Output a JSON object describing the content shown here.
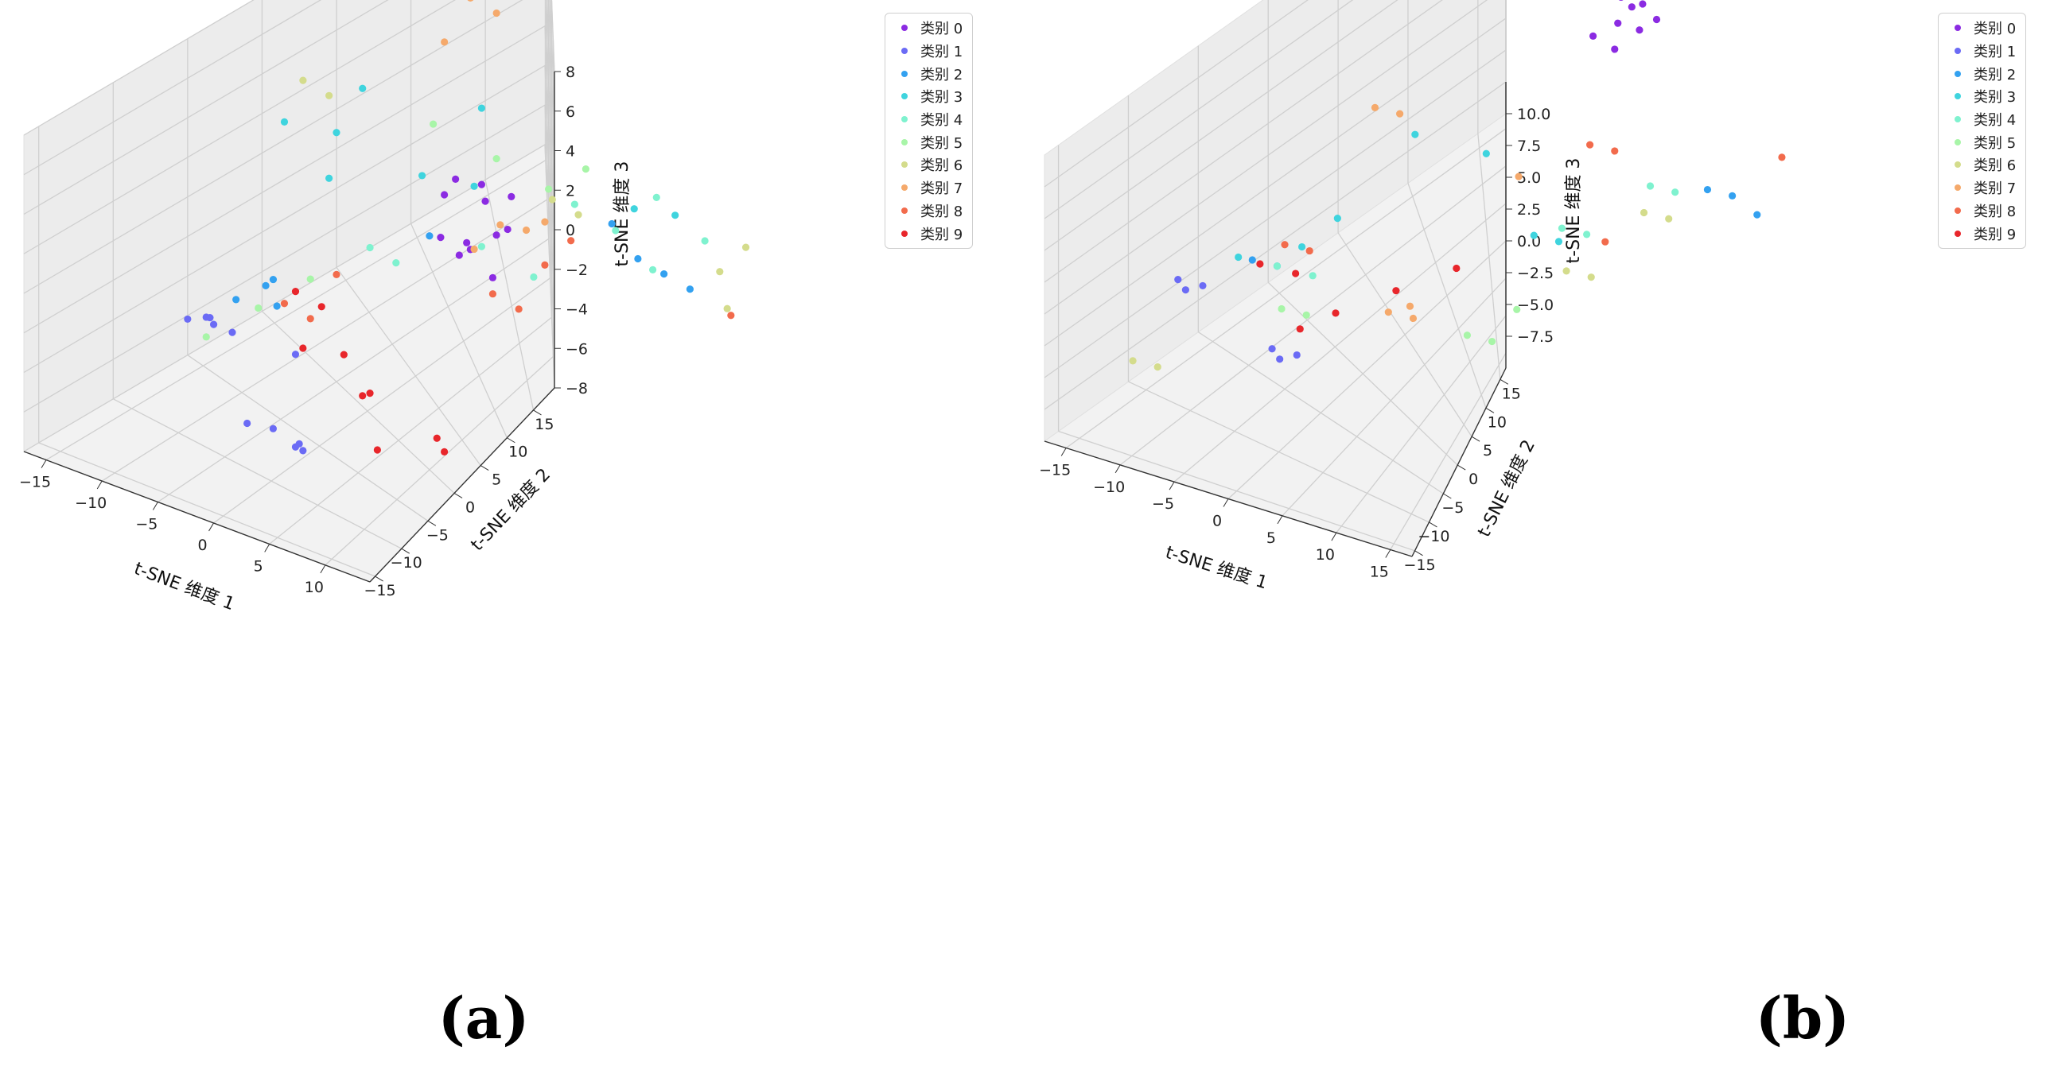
{
  "captions": [
    "(a)",
    "(b)"
  ],
  "chart_data": [
    {
      "type": "scatter",
      "subtype": "3d-scatter",
      "xlabel": "t-SNE 维度 1",
      "ylabel": "t-SNE 维度 2",
      "zlabel": "t-SNE 维度 3",
      "xticks": [
        "−15",
        "−10",
        "−5",
        "0",
        "5",
        "10"
      ],
      "yticks": [
        "−15",
        "−10",
        "−5",
        "0",
        "5",
        "10",
        "15"
      ],
      "zticks": [
        "8",
        "6",
        "4",
        "2",
        "0",
        "−2",
        "−4",
        "−6",
        "−8"
      ],
      "xlim": [
        -17,
        14
      ],
      "ylim": [
        -16,
        19
      ],
      "zlim": [
        -8,
        8
      ],
      "legend": [
        "类别 0",
        "类别 1",
        "类别 2",
        "类别 3",
        "类别 4",
        "类别 5",
        "类别 6",
        "类别 7",
        "类别 8",
        "类别 9"
      ],
      "series": [
        {
          "name": "类别 0",
          "color": "#8b2be2",
          "points": [
            [
              7,
              -5,
              6
            ],
            [
              8,
              -4,
              5.5
            ],
            [
              7,
              -3,
              4
            ],
            [
              8,
              -5,
              3
            ],
            [
              7,
              -4,
              2
            ],
            [
              8,
              -3,
              2.5
            ],
            [
              6,
              -4,
              1.5
            ],
            [
              9,
              -4,
              1
            ],
            [
              7,
              -6,
              3.5
            ],
            [
              8,
              -2,
              4
            ],
            [
              6,
              -5,
              5
            ],
            [
              9,
              -3,
              3
            ]
          ]
        },
        {
          "name": "类别 1",
          "color": "#6b6bf5",
          "points": [
            [
              -13,
              -8,
              -4
            ],
            [
              -12,
              -7,
              -4.5
            ],
            [
              -14,
              -6,
              -5
            ],
            [
              -11,
              -8,
              -3.5
            ],
            [
              -13,
              -5,
              -6
            ],
            [
              0,
              -12,
              -5
            ],
            [
              1,
              -11,
              -6
            ],
            [
              -1,
              -13,
              -4.5
            ],
            [
              0,
              -10,
              -7
            ],
            [
              2,
              -12,
              -5.5
            ],
            [
              -2,
              -9,
              -3
            ]
          ]
        },
        {
          "name": "类别 2",
          "color": "#33a1f0",
          "points": [
            [
              -14,
              -4,
              -5
            ],
            [
              -12,
              -3,
              -4
            ],
            [
              -10,
              -5,
              -3
            ],
            [
              -13,
              -2,
              -6
            ],
            [
              6,
              8,
              -4
            ],
            [
              7,
              9,
              -5
            ],
            [
              8,
              10,
              -6
            ],
            [
              5,
              7,
              -2
            ],
            [
              -2,
              0,
              -1
            ]
          ]
        },
        {
          "name": "类别 3",
          "color": "#3fd4de",
          "points": [
            [
              -15,
              0,
              2
            ],
            [
              -13,
              2,
              1
            ],
            [
              -12,
              3,
              3
            ],
            [
              -11,
              0,
              0
            ],
            [
              -8,
              4,
              -1
            ],
            [
              -6,
              6,
              -2
            ],
            [
              3,
              10,
              -3
            ],
            [
              4,
              12,
              -4
            ],
            [
              0,
              2,
              5
            ]
          ]
        },
        {
          "name": "类别 4",
          "color": "#7ff2cf",
          "points": [
            [
              -6,
              -1,
              -2
            ],
            [
              -5,
              0,
              -3
            ],
            [
              0,
              2,
              -2
            ],
            [
              2,
              4,
              -4
            ],
            [
              4,
              8,
              -3
            ],
            [
              6,
              9,
              -5
            ],
            [
              8,
              11,
              -4
            ],
            [
              3,
              6,
              -1
            ],
            [
              5,
              10,
              -2
            ]
          ]
        },
        {
          "name": "类别 5",
          "color": "#a8f5a8",
          "points": [
            [
              -14,
              -6,
              -6
            ],
            [
              -12,
              -4,
              -5
            ],
            [
              -10,
              -2,
              -4
            ],
            [
              0,
              3,
              2
            ],
            [
              2,
              5,
              0
            ],
            [
              -3,
              1,
              4
            ],
            [
              4,
              6,
              1
            ]
          ]
        },
        {
          "name": "类别 6",
          "color": "#d4dc8c",
          "points": [
            [
              -16,
              2,
              3
            ],
            [
              -15,
              3,
              2
            ],
            [
              8,
              12,
              -6
            ],
            [
              9,
              13,
              -5
            ],
            [
              10,
              11,
              -7
            ],
            [
              5,
              3,
              1
            ],
            [
              6,
              4,
              0
            ]
          ]
        },
        {
          "name": "类别 7",
          "color": "#f5a96b",
          "points": [
            [
              -9,
              8,
              6
            ],
            [
              -8,
              9,
              5
            ],
            [
              -10,
              7,
              4
            ],
            [
              -9,
              10,
              5.5
            ],
            [
              -2,
              3,
              -3
            ],
            [
              -1,
              4,
              -2
            ],
            [
              0,
              5,
              -2.5
            ],
            [
              3,
              4,
              -1
            ]
          ]
        },
        {
          "name": "类别 8",
          "color": "#f26b4c",
          "points": [
            [
              -11,
              -3,
              -5
            ],
            [
              -10,
              -2,
              -6
            ],
            [
              -9,
              -1,
              -4
            ],
            [
              5,
              -1,
              -2
            ],
            [
              6,
              0,
              -3
            ],
            [
              7,
              1,
              -1
            ],
            [
              8,
              2,
              0
            ],
            [
              9,
              12,
              -8
            ]
          ]
        },
        {
          "name": "类别 9",
          "color": "#e8262b",
          "points": [
            [
              -6,
              -6,
              -2
            ],
            [
              -5,
              -5,
              -3
            ],
            [
              -4,
              -7,
              -4
            ],
            [
              -3,
              -5,
              -5
            ],
            [
              0,
              -6,
              -6
            ],
            [
              2,
              -7,
              -5
            ],
            [
              4,
              -8,
              -7
            ],
            [
              6,
              -5,
              -8
            ],
            [
              8,
              -7,
              -6
            ]
          ]
        }
      ]
    },
    {
      "type": "scatter",
      "subtype": "3d-scatter",
      "xlabel": "t-SNE 维度 1",
      "ylabel": "t-SNE 维度 2",
      "zlabel": "t-SNE 维度 3",
      "xticks": [
        "−15",
        "−10",
        "−5",
        "0",
        "5",
        "10",
        "15"
      ],
      "yticks": [
        "−15",
        "−10",
        "−5",
        "0",
        "5",
        "10",
        "15"
      ],
      "zticks": [
        "10.0",
        "7.5",
        "5.0",
        "2.5",
        "0.0",
        "−2.5",
        "−5.0",
        "−7.5"
      ],
      "xlim": [
        -17,
        17
      ],
      "ylim": [
        -16,
        17
      ],
      "zlim": [
        -10,
        12.5
      ],
      "legend": [
        "类别 0",
        "类别 1",
        "类别 2",
        "类别 3",
        "类别 4",
        "类别 5",
        "类别 6",
        "类别 7",
        "类别 8",
        "类别 9"
      ],
      "series": [
        {
          "name": "类别 0",
          "color": "#8b2be2",
          "points": [
            [
              5,
              8,
              10
            ],
            [
              6,
              9,
              11
            ],
            [
              4,
              7,
              9.5
            ],
            [
              6,
              10,
              9
            ],
            [
              5,
              9,
              10.5
            ],
            [
              7,
              8,
              10
            ],
            [
              4,
              9,
              11
            ],
            [
              6,
              7,
              9
            ]
          ]
        },
        {
          "name": "类别 1",
          "color": "#6b6bf5",
          "points": [
            [
              -15,
              -8,
              -3
            ],
            [
              -14,
              -7,
              -4
            ],
            [
              -13,
              -9,
              -2.5
            ],
            [
              -5,
              -9,
              -5
            ],
            [
              -4,
              -8,
              -6
            ],
            [
              -3,
              -10,
              -4.5
            ]
          ]
        },
        {
          "name": "类别 2",
          "color": "#33a1f0",
          "points": [
            [
              -12,
              -5,
              -3
            ],
            [
              -11,
              -4,
              -4
            ],
            [
              13,
              10,
              -3
            ],
            [
              14,
              11,
              -5
            ],
            [
              12,
              9,
              -2
            ]
          ]
        },
        {
          "name": "类别 3",
          "color": "#3fd4de",
          "points": [
            [
              -12,
              -6,
              -2
            ],
            [
              -10,
              -3,
              -3
            ],
            [
              -8,
              -2,
              -1
            ],
            [
              -6,
              2,
              3
            ],
            [
              -2,
              4,
              1
            ],
            [
              5,
              2,
              -2
            ],
            [
              6,
              3,
              -3
            ]
          ]
        },
        {
          "name": "类别 4",
          "color": "#7ff2cf",
          "points": [
            [
              -11,
              -4,
              -4
            ],
            [
              -9,
              -3,
              -5
            ],
            [
              5,
              4,
              -3
            ],
            [
              6,
              5,
              -4
            ],
            [
              8,
              8,
              -2
            ],
            [
              9,
              9,
              -3
            ]
          ]
        },
        {
          "name": "类别 5",
          "color": "#a8f5a8",
          "points": [
            [
              -8,
              -6,
              -5
            ],
            [
              -7,
              -5,
              -6
            ],
            [
              4,
              -2,
              -7
            ],
            [
              5,
              -1,
              -8
            ],
            [
              6,
              0,
              -6
            ]
          ]
        },
        {
          "name": "类别 6",
          "color": "#d4dc8c",
          "points": [
            [
              -14,
              -12,
              -6
            ],
            [
              -13,
              -11,
              -7
            ],
            [
              8,
              2,
              -4
            ],
            [
              9,
              3,
              -5
            ],
            [
              10,
              6,
              -2
            ],
            [
              11,
              7,
              -3
            ]
          ]
        },
        {
          "name": "类别 7",
          "color": "#f5a96b",
          "points": [
            [
              -11,
              3,
              3
            ],
            [
              -10,
              4,
              2
            ],
            [
              -2,
              -3,
              -6
            ],
            [
              -1,
              -2,
              -7
            ],
            [
              0,
              -3,
              -5
            ],
            [
              1,
              4,
              0
            ]
          ]
        },
        {
          "name": "类别 8",
          "color": "#f26b4c",
          "points": [
            [
              -9,
              -5,
              -1
            ],
            [
              -8,
              -4,
              -2
            ],
            [
              5,
              6,
              2
            ],
            [
              6,
              7,
              1
            ],
            [
              9,
              4,
              -3
            ],
            [
              15,
              12,
              -1
            ]
          ]
        },
        {
          "name": "类别 9",
          "color": "#e8262b",
          "points": [
            [
              -10,
              -6,
              -2
            ],
            [
              -8,
              -5,
              -3
            ],
            [
              -5,
              -7,
              -5
            ],
            [
              -3,
              -6,
              -4
            ],
            [
              0,
              -4,
              -3
            ],
            [
              3,
              -2,
              -2
            ]
          ]
        }
      ]
    }
  ]
}
